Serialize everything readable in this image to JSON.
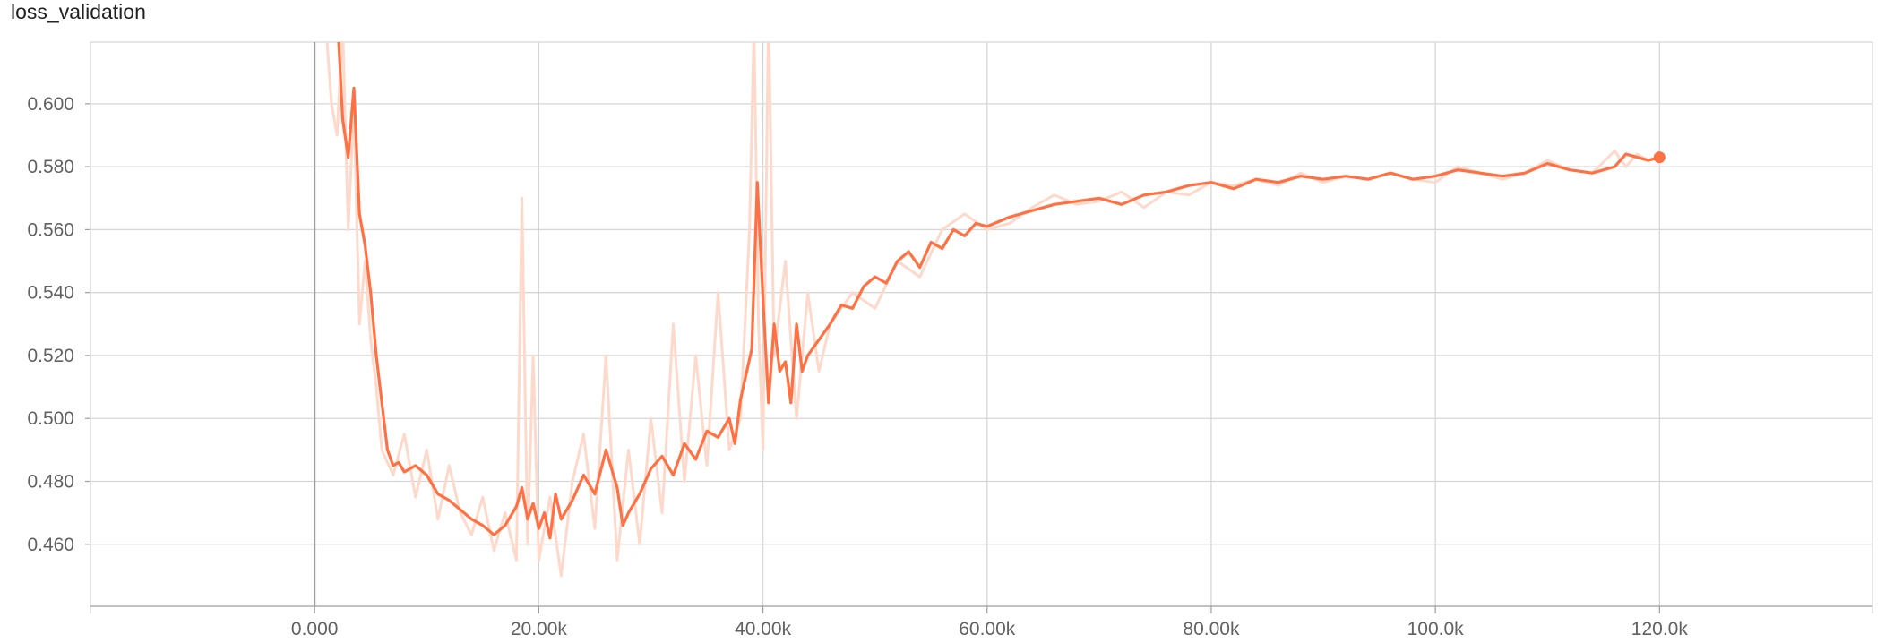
{
  "chart_data": {
    "type": "line",
    "title": "loss_validation",
    "xlabel": "",
    "ylabel": "",
    "xlim": [
      -20000,
      139000
    ],
    "ylim": [
      0.4403,
      0.6196
    ],
    "grid": true,
    "x_ticks": [
      0,
      20000,
      40000,
      60000,
      80000,
      100000,
      120000
    ],
    "x_tick_labels": [
      "0.000",
      "20.00k",
      "40.00k",
      "60.00k",
      "80.00k",
      "100.0k",
      "120.0k"
    ],
    "y_ticks": [
      0.46,
      0.48,
      0.5,
      0.52,
      0.54,
      0.56,
      0.58,
      0.6
    ],
    "y_tick_labels": [
      "0.460",
      "0.480",
      "0.500",
      "0.520",
      "0.540",
      "0.560",
      "0.580",
      "0.600"
    ],
    "colors": {
      "smoothed": "#ff7043",
      "raw": "#fdd9cc",
      "grid": "#d6d6d6",
      "zero_line": "#9e9e9e"
    },
    "series": [
      {
        "role": "raw",
        "x": [
          1000,
          1500,
          2000,
          2500,
          3000,
          3500,
          4000,
          4500,
          5000,
          5500,
          6000,
          7000,
          8000,
          9000,
          10000,
          11000,
          12000,
          13000,
          14000,
          15000,
          16000,
          17000,
          18000,
          18500,
          19000,
          19500,
          20000,
          21000,
          22000,
          23000,
          24000,
          25000,
          26000,
          27000,
          28000,
          29000,
          30000,
          31000,
          32000,
          33000,
          34000,
          35000,
          36000,
          37000,
          38000,
          38800,
          39200,
          39600,
          40000,
          40500,
          41000,
          42000,
          43000,
          44000,
          45000,
          46000,
          48000,
          50000,
          52000,
          54000,
          56000,
          58000,
          60000,
          62000,
          64000,
          66000,
          68000,
          70000,
          72000,
          74000,
          76000,
          78000,
          80000,
          82000,
          84000,
          86000,
          88000,
          90000,
          92000,
          94000,
          96000,
          98000,
          100000,
          102000,
          104000,
          106000,
          108000,
          110000,
          112000,
          114000,
          116000,
          117000,
          118000,
          119000,
          120000
        ],
        "y": [
          0.625,
          0.6,
          0.59,
          0.625,
          0.56,
          0.6,
          0.53,
          0.55,
          0.525,
          0.51,
          0.49,
          0.482,
          0.495,
          0.475,
          0.49,
          0.468,
          0.485,
          0.47,
          0.463,
          0.475,
          0.458,
          0.47,
          0.455,
          0.57,
          0.46,
          0.52,
          0.455,
          0.475,
          0.45,
          0.48,
          0.495,
          0.465,
          0.52,
          0.455,
          0.49,
          0.46,
          0.5,
          0.47,
          0.53,
          0.48,
          0.52,
          0.485,
          0.54,
          0.49,
          0.5,
          0.56,
          0.625,
          0.53,
          0.49,
          0.63,
          0.52,
          0.55,
          0.5,
          0.54,
          0.515,
          0.53,
          0.54,
          0.535,
          0.55,
          0.545,
          0.56,
          0.565,
          0.56,
          0.562,
          0.567,
          0.571,
          0.568,
          0.569,
          0.572,
          0.567,
          0.572,
          0.571,
          0.575,
          0.574,
          0.576,
          0.574,
          0.578,
          0.575,
          0.577,
          0.576,
          0.578,
          0.576,
          0.575,
          0.58,
          0.578,
          0.576,
          0.578,
          0.582,
          0.579,
          0.578,
          0.585,
          0.58,
          0.584,
          0.582,
          0.583
        ]
      },
      {
        "role": "smoothed",
        "x": [
          2000,
          2500,
          3000,
          3500,
          4000,
          4500,
          5000,
          5500,
          6000,
          6500,
          7000,
          7500,
          8000,
          9000,
          10000,
          11000,
          12000,
          13000,
          14000,
          15000,
          16000,
          17000,
          18000,
          18500,
          19000,
          19500,
          20000,
          20500,
          21000,
          21500,
          22000,
          23000,
          24000,
          25000,
          26000,
          27000,
          27500,
          28000,
          29000,
          30000,
          31000,
          32000,
          33000,
          34000,
          35000,
          36000,
          37000,
          37500,
          38000,
          38500,
          39000,
          39500,
          40000,
          40500,
          41000,
          41500,
          42000,
          42500,
          43000,
          43500,
          44000,
          45000,
          46000,
          47000,
          48000,
          49000,
          50000,
          51000,
          52000,
          53000,
          54000,
          55000,
          56000,
          57000,
          58000,
          59000,
          60000,
          62000,
          64000,
          66000,
          68000,
          70000,
          72000,
          74000,
          76000,
          78000,
          80000,
          82000,
          84000,
          86000,
          88000,
          90000,
          92000,
          94000,
          96000,
          98000,
          100000,
          102000,
          104000,
          106000,
          108000,
          110000,
          112000,
          114000,
          115000,
          116000,
          117000,
          118000,
          119000,
          120000
        ],
        "y": [
          0.63,
          0.595,
          0.583,
          0.605,
          0.565,
          0.555,
          0.54,
          0.52,
          0.505,
          0.49,
          0.485,
          0.486,
          0.483,
          0.485,
          0.482,
          0.476,
          0.474,
          0.471,
          0.468,
          0.466,
          0.463,
          0.466,
          0.472,
          0.478,
          0.468,
          0.473,
          0.465,
          0.47,
          0.462,
          0.476,
          0.468,
          0.474,
          0.482,
          0.476,
          0.49,
          0.478,
          0.466,
          0.47,
          0.476,
          0.484,
          0.488,
          0.482,
          0.492,
          0.487,
          0.496,
          0.494,
          0.5,
          0.492,
          0.506,
          0.514,
          0.522,
          0.575,
          0.538,
          0.505,
          0.53,
          0.515,
          0.518,
          0.505,
          0.53,
          0.515,
          0.52,
          0.525,
          0.53,
          0.536,
          0.535,
          0.542,
          0.545,
          0.543,
          0.55,
          0.553,
          0.548,
          0.556,
          0.554,
          0.56,
          0.558,
          0.562,
          0.561,
          0.564,
          0.566,
          0.568,
          0.569,
          0.57,
          0.568,
          0.571,
          0.572,
          0.574,
          0.575,
          0.573,
          0.576,
          0.575,
          0.577,
          0.576,
          0.577,
          0.576,
          0.578,
          0.576,
          0.577,
          0.579,
          0.578,
          0.577,
          0.578,
          0.581,
          0.579,
          0.578,
          0.579,
          0.58,
          0.584,
          0.583,
          0.582,
          0.583
        ]
      }
    ],
    "end_marker": {
      "x": 120000,
      "y": 0.583
    }
  }
}
